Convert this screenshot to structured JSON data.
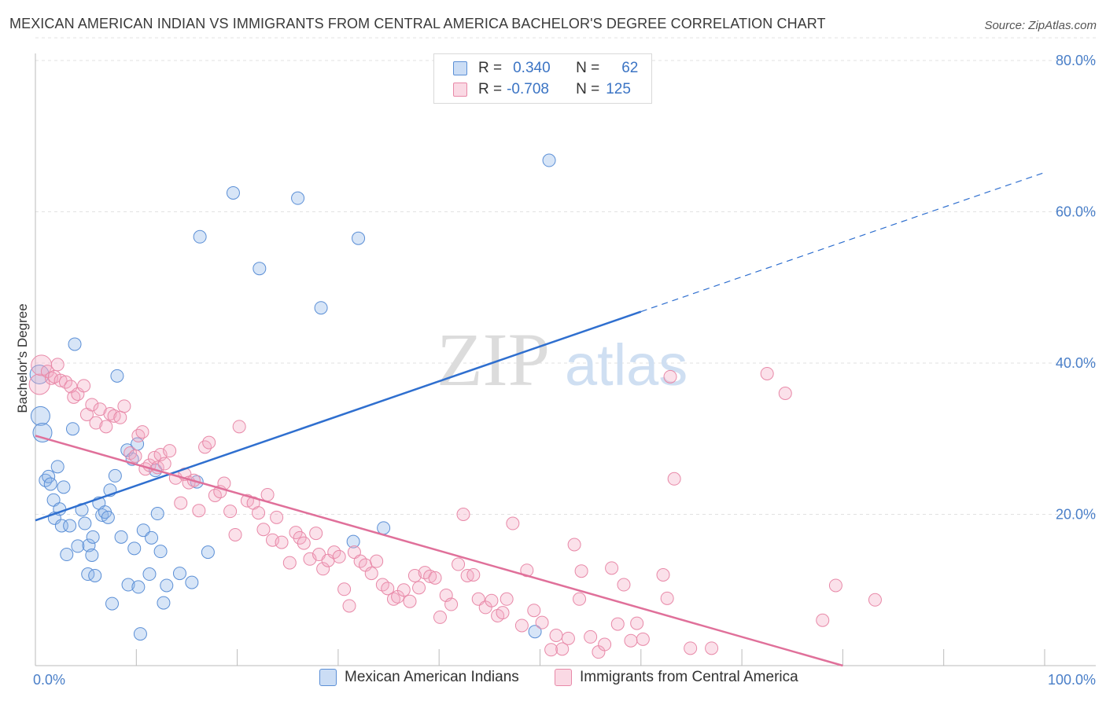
{
  "title": "MEXICAN AMERICAN INDIAN VS IMMIGRANTS FROM CENTRAL AMERICA BACHELOR'S DEGREE CORRELATION CHART",
  "source": "Source: ZipAtlas.com",
  "watermark": {
    "part1": "ZIP",
    "part2": "atlas"
  },
  "colors": {
    "blue": "#5b8fd6",
    "blue_fill": "rgba(140,180,232,0.35)",
    "blue_line": "#2f6fcf",
    "pink": "#e889a8",
    "pink_fill": "rgba(244,170,195,0.35)",
    "pink_line": "#e0709a",
    "tick_text": "#4a7fc8",
    "grid": "#e2e2e2"
  },
  "legend_top": {
    "rows": [
      {
        "r_label": "R =",
        "r_value": "0.340",
        "n_label": "N =",
        "n_value": "62",
        "swatch": "blue"
      },
      {
        "r_label": "R =",
        "r_value": "-0.708",
        "n_label": "N =",
        "n_value": "125",
        "swatch": "pink"
      }
    ]
  },
  "chart_data": {
    "type": "scatter",
    "title": "MEXICAN AMERICAN INDIAN VS IMMIGRANTS FROM CENTRAL AMERICA BACHELOR'S DEGREE CORRELATION CHART",
    "xlabel": "",
    "ylabel": "Bachelor's Degree",
    "xlim": [
      0,
      100
    ],
    "ylim": [
      0,
      83
    ],
    "x_tick_labels": [
      "0.0%",
      "100.0%"
    ],
    "y_ticks": [
      20,
      40,
      60,
      80
    ],
    "y_tick_labels": [
      "20.0%",
      "40.0%",
      "60.0%",
      "80.0%"
    ],
    "grid": true,
    "legend_position": "bottom",
    "series": [
      {
        "name": "Mexican American Indians",
        "color": "blue",
        "points": [
          [
            0.4,
            38.5
          ],
          [
            0.5,
            33.0
          ],
          [
            0.7,
            30.8
          ],
          [
            1.0,
            24.5
          ],
          [
            1.3,
            25.0
          ],
          [
            1.5,
            24.0
          ],
          [
            1.8,
            21.9
          ],
          [
            1.9,
            19.5
          ],
          [
            2.2,
            26.3
          ],
          [
            2.4,
            20.7
          ],
          [
            2.6,
            18.5
          ],
          [
            2.8,
            23.6
          ],
          [
            3.1,
            14.7
          ],
          [
            3.4,
            18.5
          ],
          [
            3.7,
            31.3
          ],
          [
            3.9,
            42.5
          ],
          [
            4.2,
            15.8
          ],
          [
            4.6,
            20.6
          ],
          [
            4.9,
            18.8
          ],
          [
            5.2,
            12.1
          ],
          [
            5.3,
            15.9
          ],
          [
            5.6,
            14.6
          ],
          [
            5.7,
            17.0
          ],
          [
            5.9,
            11.9
          ],
          [
            6.3,
            21.5
          ],
          [
            6.6,
            19.9
          ],
          [
            6.9,
            20.3
          ],
          [
            7.2,
            19.6
          ],
          [
            7.4,
            23.2
          ],
          [
            7.6,
            8.2
          ],
          [
            7.9,
            25.1
          ],
          [
            8.1,
            38.3
          ],
          [
            8.5,
            17.0
          ],
          [
            9.1,
            28.5
          ],
          [
            9.2,
            10.7
          ],
          [
            9.6,
            27.3
          ],
          [
            9.8,
            15.5
          ],
          [
            10.1,
            29.3
          ],
          [
            10.2,
            10.4
          ],
          [
            10.4,
            4.2
          ],
          [
            10.7,
            17.9
          ],
          [
            11.3,
            12.1
          ],
          [
            11.5,
            16.9
          ],
          [
            11.9,
            25.8
          ],
          [
            12.1,
            20.1
          ],
          [
            12.4,
            15.1
          ],
          [
            12.7,
            8.3
          ],
          [
            13.0,
            10.6
          ],
          [
            14.3,
            12.2
          ],
          [
            15.5,
            11.0
          ],
          [
            16.0,
            24.3
          ],
          [
            16.3,
            56.7
          ],
          [
            17.1,
            15.0
          ],
          [
            19.6,
            62.5
          ],
          [
            22.2,
            52.5
          ],
          [
            26.0,
            61.8
          ],
          [
            28.3,
            47.3
          ],
          [
            31.5,
            16.4
          ],
          [
            32.0,
            56.5
          ],
          [
            34.5,
            18.2
          ],
          [
            49.5,
            4.5
          ],
          [
            50.9,
            66.8
          ]
        ]
      },
      {
        "name": "Immigrants from Central America",
        "color": "pink",
        "points": [
          [
            0.4,
            37.2
          ],
          [
            0.6,
            39.7
          ],
          [
            1.2,
            38.9
          ],
          [
            1.6,
            38.0
          ],
          [
            1.9,
            38.2
          ],
          [
            2.2,
            39.8
          ],
          [
            2.5,
            37.7
          ],
          [
            3.0,
            37.5
          ],
          [
            3.5,
            36.9
          ],
          [
            3.8,
            35.5
          ],
          [
            4.2,
            35.9
          ],
          [
            4.8,
            37.0
          ],
          [
            5.1,
            33.2
          ],
          [
            5.6,
            34.5
          ],
          [
            6.0,
            32.1
          ],
          [
            6.4,
            33.9
          ],
          [
            7.0,
            31.6
          ],
          [
            7.4,
            33.3
          ],
          [
            7.8,
            33.0
          ],
          [
            8.4,
            32.8
          ],
          [
            8.8,
            34.3
          ],
          [
            9.4,
            28.1
          ],
          [
            9.9,
            27.7
          ],
          [
            10.2,
            30.4
          ],
          [
            10.6,
            30.9
          ],
          [
            10.9,
            26.0
          ],
          [
            11.3,
            26.5
          ],
          [
            11.8,
            27.5
          ],
          [
            12.1,
            26.2
          ],
          [
            12.4,
            27.9
          ],
          [
            12.8,
            26.7
          ],
          [
            13.3,
            28.4
          ],
          [
            13.9,
            24.8
          ],
          [
            14.4,
            21.5
          ],
          [
            14.8,
            25.3
          ],
          [
            15.2,
            24.2
          ],
          [
            15.7,
            24.5
          ],
          [
            16.2,
            20.5
          ],
          [
            16.8,
            28.9
          ],
          [
            17.2,
            29.5
          ],
          [
            17.8,
            22.5
          ],
          [
            18.3,
            23.0
          ],
          [
            18.7,
            24.1
          ],
          [
            19.3,
            20.4
          ],
          [
            19.8,
            17.3
          ],
          [
            20.2,
            31.6
          ],
          [
            21.0,
            21.8
          ],
          [
            21.6,
            21.5
          ],
          [
            22.1,
            20.2
          ],
          [
            22.6,
            18.0
          ],
          [
            23.0,
            22.6
          ],
          [
            23.5,
            16.6
          ],
          [
            23.9,
            19.6
          ],
          [
            24.4,
            16.3
          ],
          [
            25.2,
            13.6
          ],
          [
            25.8,
            17.6
          ],
          [
            26.2,
            16.9
          ],
          [
            26.6,
            16.2
          ],
          [
            27.2,
            14.1
          ],
          [
            27.8,
            17.5
          ],
          [
            28.1,
            14.7
          ],
          [
            28.5,
            12.8
          ],
          [
            29.0,
            13.9
          ],
          [
            29.6,
            15.0
          ],
          [
            30.1,
            14.4
          ],
          [
            30.6,
            10.1
          ],
          [
            31.1,
            7.9
          ],
          [
            31.6,
            15.0
          ],
          [
            32.2,
            13.8
          ],
          [
            32.7,
            13.3
          ],
          [
            33.3,
            12.2
          ],
          [
            33.8,
            13.8
          ],
          [
            34.4,
            10.7
          ],
          [
            34.9,
            10.2
          ],
          [
            35.5,
            8.8
          ],
          [
            35.9,
            9.1
          ],
          [
            36.5,
            10.0
          ],
          [
            37.1,
            8.5
          ],
          [
            37.6,
            11.9
          ],
          [
            38.0,
            10.3
          ],
          [
            38.6,
            12.3
          ],
          [
            39.1,
            11.8
          ],
          [
            39.6,
            11.6
          ],
          [
            40.1,
            6.4
          ],
          [
            40.7,
            9.3
          ],
          [
            41.2,
            8.1
          ],
          [
            41.9,
            13.4
          ],
          [
            42.4,
            20.0
          ],
          [
            42.8,
            11.9
          ],
          [
            43.4,
            12.0
          ],
          [
            43.9,
            8.8
          ],
          [
            44.6,
            7.7
          ],
          [
            45.2,
            8.6
          ],
          [
            45.8,
            6.6
          ],
          [
            46.3,
            7.0
          ],
          [
            46.7,
            8.8
          ],
          [
            47.3,
            18.8
          ],
          [
            48.2,
            5.3
          ],
          [
            48.7,
            12.6
          ],
          [
            49.4,
            7.3
          ],
          [
            50.2,
            5.7
          ],
          [
            51.1,
            2.1
          ],
          [
            51.6,
            4.0
          ],
          [
            52.2,
            2.2
          ],
          [
            52.8,
            3.6
          ],
          [
            53.4,
            16.0
          ],
          [
            53.9,
            8.8
          ],
          [
            54.1,
            12.5
          ],
          [
            55.0,
            3.8
          ],
          [
            55.8,
            1.8
          ],
          [
            56.4,
            2.8
          ],
          [
            57.1,
            12.9
          ],
          [
            57.7,
            5.5
          ],
          [
            58.3,
            10.7
          ],
          [
            59.0,
            3.3
          ],
          [
            59.6,
            5.6
          ],
          [
            60.2,
            3.5
          ],
          [
            62.2,
            12.0
          ],
          [
            62.6,
            8.9
          ],
          [
            62.9,
            38.2
          ],
          [
            63.3,
            24.7
          ],
          [
            64.9,
            2.3
          ],
          [
            67.0,
            2.3
          ],
          [
            72.5,
            38.6
          ],
          [
            74.3,
            36.0
          ],
          [
            78.0,
            6.0
          ],
          [
            79.3,
            10.6
          ],
          [
            83.2,
            8.7
          ]
        ]
      }
    ],
    "trend_lines": [
      {
        "series": "Mexican American Indians",
        "solid": [
          [
            0,
            19.2
          ],
          [
            60,
            46.8
          ]
        ],
        "dashed": [
          [
            60,
            46.8
          ],
          [
            100,
            65.2
          ]
        ]
      },
      {
        "series": "Immigrants from Central America",
        "solid": [
          [
            0,
            30.4
          ],
          [
            80,
            0
          ]
        ]
      }
    ]
  }
}
